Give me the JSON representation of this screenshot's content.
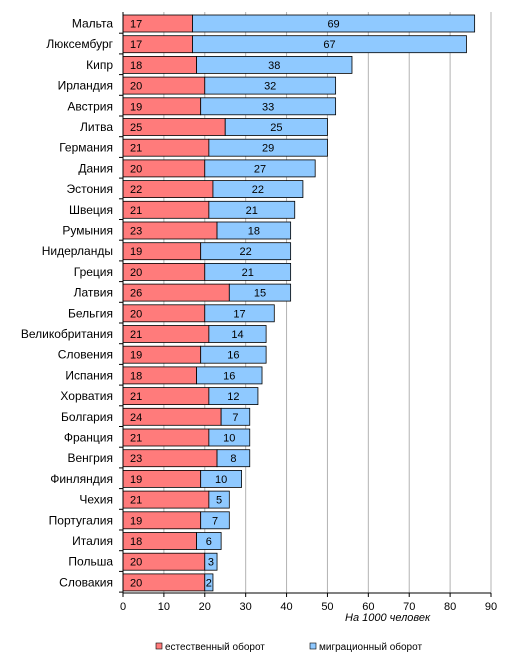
{
  "chart_data": {
    "type": "bar",
    "orientation": "horizontal",
    "stacked": true,
    "categories": [
      "Мальта",
      "Люксембург",
      "Кипр",
      "Ирландия",
      "Австрия",
      "Литва",
      "Германия",
      "Дания",
      "Эстония",
      "Швеция",
      "Румыния",
      "Нидерланды",
      "Греция",
      "Латвия",
      "Бельгия",
      "Великобритания",
      "Словения",
      "Испания",
      "Хорватия",
      "Болгария",
      "Франция",
      "Венгрия",
      "Финляндия",
      "Чехия",
      "Португалия",
      "Италия",
      "Польша",
      "Словакия"
    ],
    "series": [
      {
        "name": "естественный оборот",
        "color": "#ff7b7b",
        "values": [
          17,
          17,
          18,
          20,
          19,
          25,
          21,
          20,
          22,
          21,
          23,
          19,
          20,
          26,
          20,
          21,
          19,
          18,
          21,
          24,
          21,
          23,
          19,
          21,
          19,
          18,
          20,
          20
        ]
      },
      {
        "name": "миграционный оборот",
        "color": "#8fc9ff",
        "values": [
          69,
          67,
          38,
          32,
          33,
          25,
          29,
          27,
          22,
          21,
          18,
          22,
          21,
          15,
          17,
          14,
          16,
          16,
          12,
          7,
          10,
          8,
          10,
          5,
          7,
          6,
          3,
          2
        ]
      }
    ],
    "xlim": [
      0,
      90
    ],
    "xticks": [
      0,
      10,
      20,
      30,
      40,
      50,
      60,
      70,
      80,
      90
    ],
    "xlabel": "На 1000 человек",
    "grid": true,
    "legend_position": "bottom"
  }
}
